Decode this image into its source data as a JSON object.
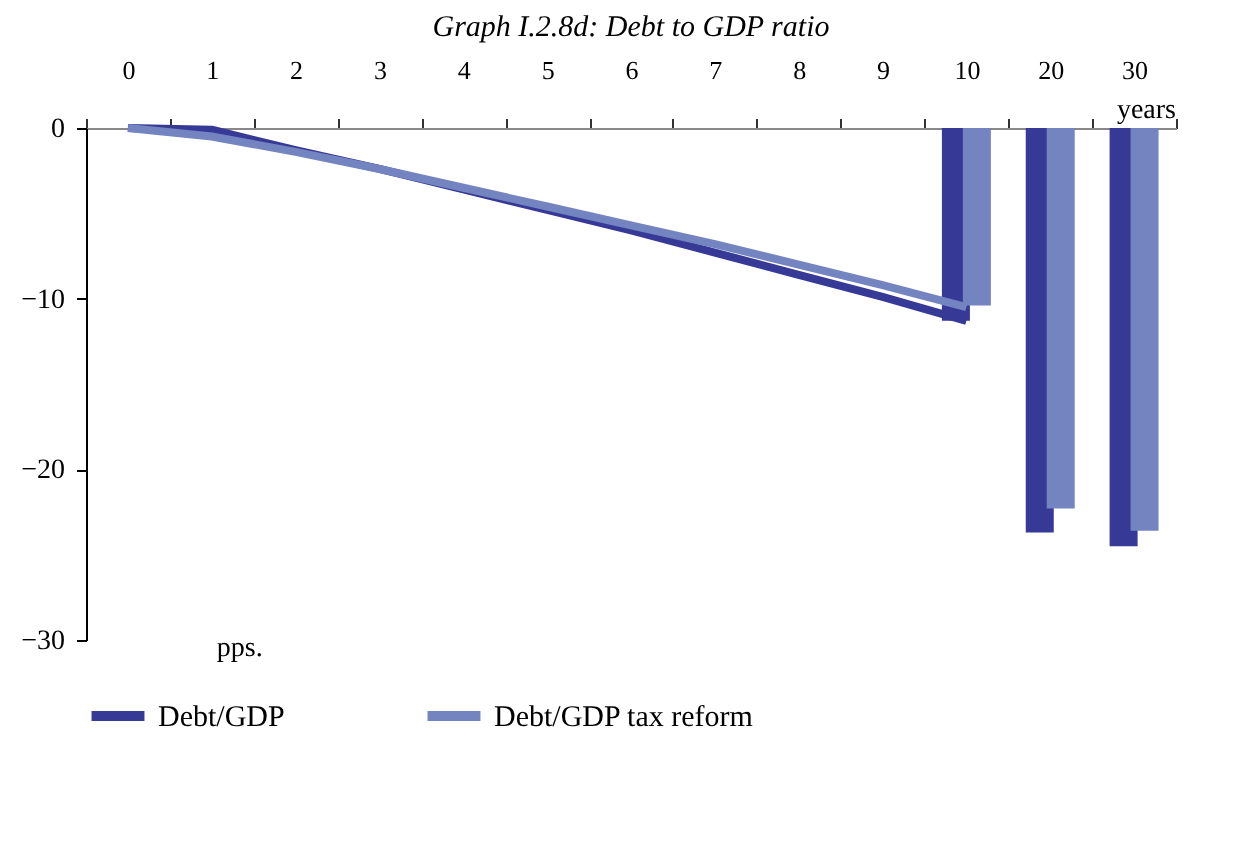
{
  "chart_data": {
    "type": "bar",
    "title": "Graph I.2.8d: Debt to GDP ratio",
    "categories": [
      "0",
      "1",
      "2",
      "3",
      "4",
      "5",
      "6",
      "7",
      "8",
      "9",
      "10",
      "20",
      "30"
    ],
    "series": [
      {
        "name": "Debt/GDP",
        "type": "line",
        "color": "#363996",
        "values": [
          0,
          -0.1,
          -1.3,
          -2.4,
          -3.6,
          -4.8,
          -6.0,
          -7.3,
          -8.6,
          -9.9,
          -11.3,
          null,
          null
        ]
      },
      {
        "name": "Debt/GDP tax reform",
        "type": "line",
        "color": "#7384c0",
        "values": [
          0,
          -0.5,
          -1.4,
          -2.4,
          -3.5,
          -4.6,
          -5.7,
          -6.8,
          -8.0,
          -9.2,
          -10.5,
          null,
          null
        ]
      },
      {
        "color": "#363996",
        "values": [
          null,
          null,
          null,
          null,
          null,
          null,
          null,
          null,
          null,
          null,
          -11.3,
          -23.7,
          -24.5
        ]
      },
      {
        "color": "#7384c0",
        "values": [
          null,
          null,
          null,
          null,
          null,
          null,
          null,
          null,
          null,
          null,
          -10.4,
          -22.3,
          -23.6
        ]
      }
    ],
    "ylim": [
      -30,
      0
    ],
    "yticks": [
      -30,
      -20,
      -10,
      0
    ],
    "grid": false,
    "legend": "bottom",
    "annotations": [
      "pps.",
      "years"
    ]
  }
}
